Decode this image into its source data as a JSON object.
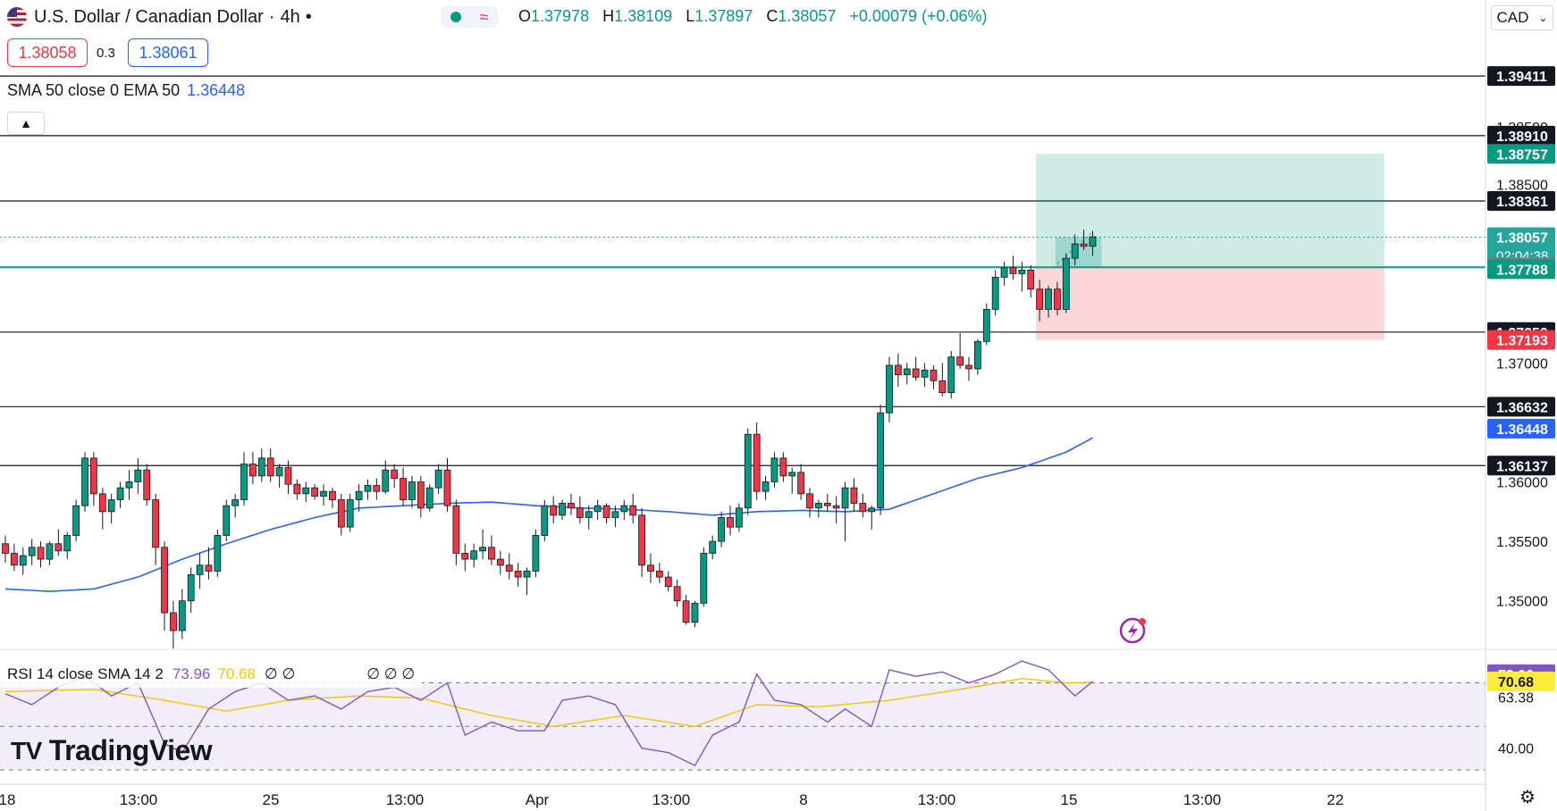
{
  "header": {
    "symbol": "U.S. Dollar / Canadian Dollar",
    "timeframe": "4h",
    "ohlc": [
      {
        "label": "O",
        "value": "1.37978"
      },
      {
        "label": "H",
        "value": "1.38109"
      },
      {
        "label": "L",
        "value": "1.37897"
      },
      {
        "label": "C",
        "value": "1.38057"
      }
    ],
    "change": "+0.00079 (+0.06%)"
  },
  "trade": {
    "sell": "1.38058",
    "spread": "0.3",
    "buy": "1.38061"
  },
  "indicator": {
    "label": "SMA 50 close 0 EMA 50",
    "value": "1.36448"
  },
  "currency": "CAD",
  "logo": "TradingView",
  "rsi_header": {
    "label": "RSI 14 close SMA 14 2",
    "rsi": "73.96",
    "sma": "70.68",
    "extra": "∅ ∅",
    "extra2": "∅ ∅ ∅"
  },
  "chart_data": {
    "type": "candlestick",
    "price_scale": {
      "ymin": 1.346,
      "ymax": 1.3975,
      "tick_labels": [
        "1.35000",
        "1.35500",
        "1.36000",
        "1.37000",
        "1.38500",
        "1.38500"
      ]
    },
    "x_labels": [
      "18",
      "13:00",
      "25",
      "13:00",
      "Apr",
      "13:00",
      "8",
      "13:00",
      "15",
      "13:00",
      "22"
    ],
    "candles": [
      [
        1.3548,
        1.3555,
        1.3532,
        1.354
      ],
      [
        1.354,
        1.3548,
        1.3525,
        1.353
      ],
      [
        1.353,
        1.3545,
        1.3522,
        1.3538
      ],
      [
        1.3538,
        1.3552,
        1.353,
        1.3545
      ],
      [
        1.3545,
        1.355,
        1.3528,
        1.3535
      ],
      [
        1.3535,
        1.355,
        1.353,
        1.3548
      ],
      [
        1.3548,
        1.356,
        1.3538,
        1.3542
      ],
      [
        1.3542,
        1.3558,
        1.3535,
        1.3555
      ],
      [
        1.3555,
        1.3585,
        1.355,
        1.358
      ],
      [
        1.358,
        1.3625,
        1.3575,
        1.362
      ],
      [
        1.362,
        1.3625,
        1.358,
        1.359
      ],
      [
        1.359,
        1.3595,
        1.356,
        1.3575
      ],
      [
        1.3575,
        1.359,
        1.3565,
        1.3585
      ],
      [
        1.3585,
        1.36,
        1.3578,
        1.3595
      ],
      [
        1.3595,
        1.361,
        1.3585,
        1.36
      ],
      [
        1.36,
        1.362,
        1.359,
        1.361
      ],
      [
        1.361,
        1.3615,
        1.358,
        1.3585
      ],
      [
        1.3585,
        1.359,
        1.353,
        1.3545
      ],
      [
        1.3545,
        1.355,
        1.3475,
        1.349
      ],
      [
        1.349,
        1.35,
        1.346,
        1.3475
      ],
      [
        1.3475,
        1.351,
        1.3468,
        1.35
      ],
      [
        1.35,
        1.3528,
        1.349,
        1.3522
      ],
      [
        1.3522,
        1.354,
        1.351,
        1.353
      ],
      [
        1.353,
        1.3545,
        1.3518,
        1.3525
      ],
      [
        1.3525,
        1.356,
        1.352,
        1.3555
      ],
      [
        1.3555,
        1.3585,
        1.355,
        1.358
      ],
      [
        1.358,
        1.359,
        1.357,
        1.3585
      ],
      [
        1.3585,
        1.3625,
        1.358,
        1.3615
      ],
      [
        1.3615,
        1.3625,
        1.3598,
        1.3605
      ],
      [
        1.3605,
        1.3628,
        1.36,
        1.362
      ],
      [
        1.362,
        1.3628,
        1.36,
        1.3605
      ],
      [
        1.3605,
        1.3615,
        1.3595,
        1.3612
      ],
      [
        1.3612,
        1.3618,
        1.359,
        1.3598
      ],
      [
        1.3598,
        1.3602,
        1.3585,
        1.359
      ],
      [
        1.359,
        1.36,
        1.3583,
        1.3595
      ],
      [
        1.3595,
        1.3598,
        1.3585,
        1.3588
      ],
      [
        1.3588,
        1.3598,
        1.358,
        1.3592
      ],
      [
        1.3592,
        1.3595,
        1.3578,
        1.3585
      ],
      [
        1.3585,
        1.359,
        1.3555,
        1.3562
      ],
      [
        1.3562,
        1.359,
        1.3558,
        1.3585
      ],
      [
        1.3585,
        1.3598,
        1.3575,
        1.3592
      ],
      [
        1.3592,
        1.3602,
        1.3585,
        1.3597
      ],
      [
        1.3597,
        1.3603,
        1.3585,
        1.3592
      ],
      [
        1.3592,
        1.3618,
        1.359,
        1.361
      ],
      [
        1.361,
        1.3615,
        1.3595,
        1.3603
      ],
      [
        1.3603,
        1.3612,
        1.358,
        1.3585
      ],
      [
        1.3585,
        1.3605,
        1.3578,
        1.36
      ],
      [
        1.36,
        1.3605,
        1.357,
        1.3578
      ],
      [
        1.3578,
        1.3598,
        1.3575,
        1.3595
      ],
      [
        1.3595,
        1.3615,
        1.359,
        1.361
      ],
      [
        1.361,
        1.362,
        1.3575,
        1.358
      ],
      [
        1.358,
        1.3585,
        1.353,
        1.354
      ],
      [
        1.354,
        1.3548,
        1.3525,
        1.3535
      ],
      [
        1.3535,
        1.3548,
        1.3528,
        1.3542
      ],
      [
        1.3542,
        1.356,
        1.3535,
        1.3545
      ],
      [
        1.3545,
        1.3555,
        1.353,
        1.3535
      ],
      [
        1.3535,
        1.3542,
        1.3522,
        1.353
      ],
      [
        1.353,
        1.354,
        1.3518,
        1.3525
      ],
      [
        1.3525,
        1.3532,
        1.3512,
        1.352
      ],
      [
        1.352,
        1.3528,
        1.3505,
        1.3525
      ],
      [
        1.3525,
        1.356,
        1.352,
        1.3555
      ],
      [
        1.3555,
        1.3585,
        1.355,
        1.358
      ],
      [
        1.358,
        1.3588,
        1.3565,
        1.3572
      ],
      [
        1.3572,
        1.3585,
        1.3568,
        1.3582
      ],
      [
        1.3582,
        1.359,
        1.3572,
        1.3578
      ],
      [
        1.3578,
        1.3588,
        1.3565,
        1.357
      ],
      [
        1.357,
        1.358,
        1.356,
        1.3575
      ],
      [
        1.3575,
        1.3585,
        1.3568,
        1.358
      ],
      [
        1.358,
        1.3582,
        1.3565,
        1.357
      ],
      [
        1.357,
        1.358,
        1.3562,
        1.3575
      ],
      [
        1.3575,
        1.3585,
        1.3568,
        1.358
      ],
      [
        1.358,
        1.359,
        1.3565,
        1.3572
      ],
      [
        1.3572,
        1.3578,
        1.352,
        1.353
      ],
      [
        1.353,
        1.354,
        1.3515,
        1.3525
      ],
      [
        1.3525,
        1.3532,
        1.3515,
        1.352
      ],
      [
        1.352,
        1.3525,
        1.3508,
        1.3512
      ],
      [
        1.3512,
        1.3518,
        1.3495,
        1.35
      ],
      [
        1.35,
        1.3505,
        1.348,
        1.3482
      ],
      [
        1.3482,
        1.35,
        1.3478,
        1.3498
      ],
      [
        1.3498,
        1.3545,
        1.3495,
        1.354
      ],
      [
        1.354,
        1.3555,
        1.3535,
        1.355
      ],
      [
        1.355,
        1.3575,
        1.3545,
        1.357
      ],
      [
        1.357,
        1.358,
        1.3555,
        1.3562
      ],
      [
        1.3562,
        1.3582,
        1.3558,
        1.3578
      ],
      [
        1.3578,
        1.3645,
        1.3572,
        1.364
      ],
      [
        1.364,
        1.365,
        1.3585,
        1.3592
      ],
      [
        1.3592,
        1.3605,
        1.3585,
        1.36
      ],
      [
        1.36,
        1.3625,
        1.3595,
        1.362
      ],
      [
        1.362,
        1.3625,
        1.36,
        1.3605
      ],
      [
        1.3605,
        1.3612,
        1.359,
        1.3608
      ],
      [
        1.3608,
        1.3615,
        1.3585,
        1.359
      ],
      [
        1.359,
        1.3595,
        1.357,
        1.3578
      ],
      [
        1.3578,
        1.3585,
        1.357,
        1.3582
      ],
      [
        1.3582,
        1.359,
        1.3575,
        1.358
      ],
      [
        1.358,
        1.3588,
        1.3565,
        1.3578
      ],
      [
        1.3578,
        1.36,
        1.355,
        1.3595
      ],
      [
        1.3595,
        1.3603,
        1.3575,
        1.3582
      ],
      [
        1.3582,
        1.359,
        1.357,
        1.3575
      ],
      [
        1.3575,
        1.358,
        1.356,
        1.3578
      ],
      [
        1.3578,
        1.3665,
        1.3572,
        1.3658
      ],
      [
        1.3658,
        1.3705,
        1.365,
        1.3698
      ],
      [
        1.3698,
        1.3708,
        1.368,
        1.369
      ],
      [
        1.369,
        1.37,
        1.3682,
        1.3695
      ],
      [
        1.3695,
        1.3705,
        1.3685,
        1.3688
      ],
      [
        1.3688,
        1.37,
        1.368,
        1.3694
      ],
      [
        1.3694,
        1.3698,
        1.3678,
        1.3685
      ],
      [
        1.3685,
        1.37,
        1.3672,
        1.3675
      ],
      [
        1.3675,
        1.371,
        1.367,
        1.3705
      ],
      [
        1.3705,
        1.3725,
        1.3695,
        1.3698
      ],
      [
        1.3698,
        1.3705,
        1.3685,
        1.3695
      ],
      [
        1.3695,
        1.372,
        1.369,
        1.3718
      ],
      [
        1.3718,
        1.375,
        1.3715,
        1.3745
      ],
      [
        1.3745,
        1.3778,
        1.374,
        1.3772
      ],
      [
        1.3772,
        1.3785,
        1.3765,
        1.378
      ],
      [
        1.378,
        1.379,
        1.377,
        1.3775
      ],
      [
        1.3775,
        1.3785,
        1.376,
        1.3778
      ],
      [
        1.3778,
        1.3782,
        1.3755,
        1.3762
      ],
      [
        1.3762,
        1.377,
        1.3735,
        1.3745
      ],
      [
        1.3745,
        1.3765,
        1.3738,
        1.3762
      ],
      [
        1.3762,
        1.3768,
        1.374,
        1.3745
      ],
      [
        1.3745,
        1.3792,
        1.3742,
        1.3788
      ],
      [
        1.3788,
        1.3808,
        1.3782,
        1.38
      ],
      [
        1.38,
        1.3812,
        1.3795,
        1.3798
      ],
      [
        1.3798,
        1.3811,
        1.379,
        1.3806
      ]
    ],
    "ma_anchors": [
      [
        0,
        1.351
      ],
      [
        5,
        1.3508
      ],
      [
        10,
        1.351
      ],
      [
        15,
        1.352
      ],
      [
        20,
        1.3535
      ],
      [
        25,
        1.3548
      ],
      [
        30,
        1.356
      ],
      [
        35,
        1.357
      ],
      [
        40,
        1.3578
      ],
      [
        45,
        1.358
      ],
      [
        50,
        1.3582
      ],
      [
        55,
        1.3583
      ],
      [
        60,
        1.358
      ],
      [
        65,
        1.3578
      ],
      [
        70,
        1.3577
      ],
      [
        75,
        1.3575
      ],
      [
        80,
        1.3572
      ],
      [
        85,
        1.3575
      ],
      [
        90,
        1.3576
      ],
      [
        95,
        1.3575
      ],
      [
        100,
        1.3577
      ],
      [
        105,
        1.359
      ],
      [
        110,
        1.3603
      ],
      [
        115,
        1.3612
      ],
      [
        120,
        1.3625
      ],
      [
        125,
        1.3645
      ]
    ],
    "horizontal_levels": [
      1.39411,
      1.3891,
      1.38361,
      1.37259,
      1.36632,
      1.36137
    ],
    "position": {
      "entry": 1.37804,
      "target": 1.38757,
      "stop": 1.37193,
      "start_index": 117,
      "end_index": 156
    },
    "price_labels": [
      {
        "text": "1.39411",
        "value": 1.39411,
        "bg": "#131722"
      },
      {
        "text": "1.38910",
        "value": 1.3891,
        "bg": "#131722"
      },
      {
        "text": "1.38757",
        "value": 1.38757,
        "bg": "#089981"
      },
      {
        "text": "1.38361",
        "value": 1.38361,
        "bg": "#131722"
      },
      {
        "text": "1.38057",
        "value": 1.38057,
        "bg": "#26a69a",
        "sub": "02:04:38"
      },
      {
        "text": "1.37804",
        "value": 1.37804,
        "bg": "#787b86"
      },
      {
        "text": "1.37788",
        "value": 1.37788,
        "bg": "#089981"
      },
      {
        "text": "1.37259",
        "value": 1.37259,
        "bg": "#131722"
      },
      {
        "text": "1.37193",
        "value": 1.37193,
        "bg": "#f23645"
      },
      {
        "text": "1.36632",
        "value": 1.36632,
        "bg": "#131722"
      },
      {
        "text": "1.36448",
        "value": 1.36448,
        "bg": "#2962ff"
      },
      {
        "text": "1.36137",
        "value": 1.36137,
        "bg": "#131722"
      }
    ],
    "rsi": {
      "ymin": 30,
      "ymax": 85,
      "levels": [
        70,
        50,
        30
      ],
      "right_labels": [
        {
          "text": "73.96",
          "value": 73.96,
          "bg": "#7e57c2"
        },
        {
          "text": "70.68",
          "value": 70.68,
          "bg": "#ffeb3b"
        },
        {
          "text": "63.38",
          "value": 63.38,
          "bg": ""
        },
        {
          "text": "40.00",
          "value": 40.0,
          "bg": ""
        }
      ],
      "rsi_anchors": [
        [
          0,
          65
        ],
        [
          3,
          60
        ],
        [
          6,
          68
        ],
        [
          9,
          73
        ],
        [
          12,
          64
        ],
        [
          15,
          70
        ],
        [
          18,
          42
        ],
        [
          20,
          38
        ],
        [
          23,
          58
        ],
        [
          26,
          66
        ],
        [
          29,
          70
        ],
        [
          32,
          62
        ],
        [
          35,
          64
        ],
        [
          38,
          58
        ],
        [
          41,
          66
        ],
        [
          44,
          68
        ],
        [
          47,
          62
        ],
        [
          50,
          70
        ],
        [
          52,
          46
        ],
        [
          55,
          52
        ],
        [
          58,
          48
        ],
        [
          61,
          48
        ],
        [
          63,
          62
        ],
        [
          66,
          64
        ],
        [
          69,
          60
        ],
        [
          72,
          40
        ],
        [
          75,
          38
        ],
        [
          78,
          32
        ],
        [
          80,
          46
        ],
        [
          83,
          52
        ],
        [
          85,
          74
        ],
        [
          87,
          62
        ],
        [
          90,
          60
        ],
        [
          93,
          52
        ],
        [
          95,
          58
        ],
        [
          98,
          50
        ],
        [
          100,
          76
        ],
        [
          103,
          73
        ],
        [
          106,
          75
        ],
        [
          109,
          70
        ],
        [
          112,
          74
        ],
        [
          115,
          80
        ],
        [
          118,
          76
        ],
        [
          121,
          64
        ],
        [
          124,
          74
        ],
        [
          127,
          76
        ]
      ],
      "sma_anchors": [
        [
          0,
          66
        ],
        [
          10,
          67
        ],
        [
          18,
          62
        ],
        [
          25,
          57
        ],
        [
          32,
          62
        ],
        [
          40,
          64
        ],
        [
          47,
          63
        ],
        [
          55,
          55
        ],
        [
          62,
          50
        ],
        [
          70,
          55
        ],
        [
          78,
          50
        ],
        [
          85,
          60
        ],
        [
          92,
          59
        ],
        [
          100,
          62
        ],
        [
          108,
          67
        ],
        [
          115,
          72
        ],
        [
          120,
          70
        ],
        [
          127,
          70.68
        ]
      ]
    }
  }
}
